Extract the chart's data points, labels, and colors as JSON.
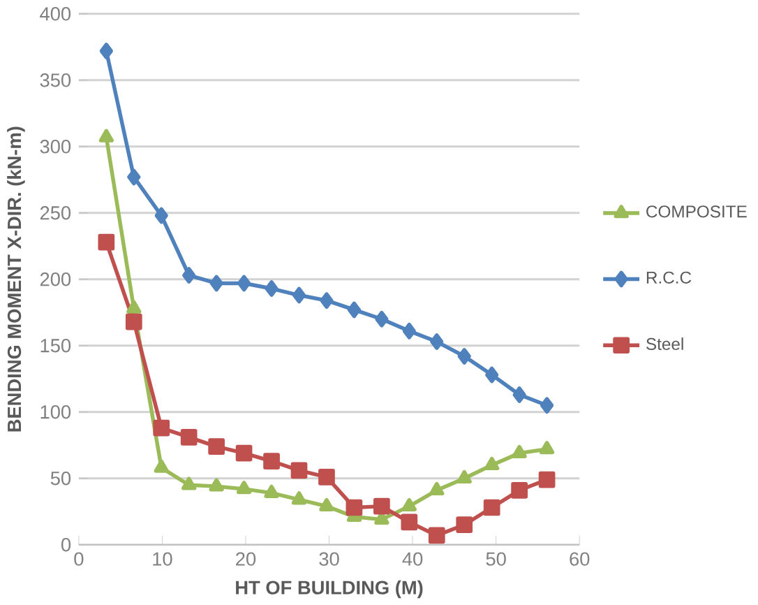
{
  "chart_data": {
    "type": "line",
    "xlabel": "HT OF BUILDING (M)",
    "ylabel": "BENDING MOMENT X-DIR. (kN-m)",
    "x": [
      3.3,
      6.6,
      9.9,
      13.2,
      16.5,
      19.8,
      23.1,
      26.4,
      29.7,
      33,
      36.3,
      39.6,
      42.9,
      46.2,
      49.5,
      52.8,
      56.1
    ],
    "series": [
      {
        "name": "COMPOSITE",
        "color": "#9bbb59",
        "marker": "triangle",
        "values": [
          307,
          178,
          58,
          45,
          44,
          42,
          39,
          34,
          29,
          21,
          19,
          29,
          41,
          50,
          60,
          69,
          72
        ]
      },
      {
        "name": "R.C.C",
        "color": "#4f81bd",
        "marker": "diamond",
        "values": [
          372,
          277,
          248,
          203,
          197,
          197,
          193,
          188,
          184,
          177,
          170,
          161,
          153,
          142,
          128,
          113,
          105
        ]
      },
      {
        "name": "Steel",
        "color": "#c0504d",
        "marker": "square",
        "values": [
          228,
          168,
          88,
          81,
          74,
          69,
          63,
          56,
          51,
          28,
          29,
          17,
          7,
          15,
          28,
          41,
          49
        ]
      }
    ],
    "xlim": [
      0,
      60
    ],
    "xticks": [
      0,
      10,
      20,
      30,
      40,
      50,
      60
    ],
    "ylim": [
      0,
      400
    ],
    "yticks": [
      0,
      50,
      100,
      150,
      200,
      250,
      300,
      350,
      400
    ],
    "grid": "y",
    "legend": "right",
    "line_style": "solid"
  }
}
